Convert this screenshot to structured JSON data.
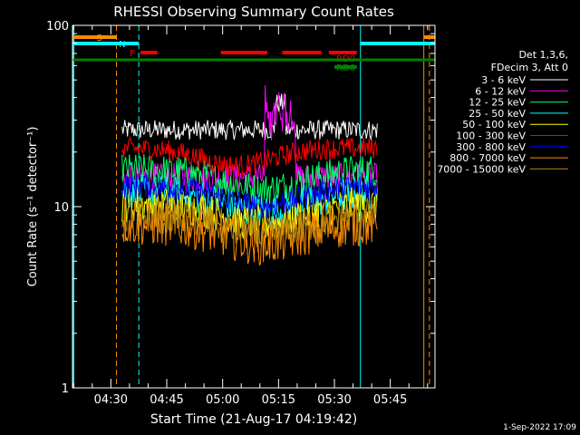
{
  "chart_data": {
    "type": "line",
    "title": "RHESSI Observing Summary Count Rates",
    "xlabel": "Start Time (21-Aug-17 04:19:42)",
    "ylabel": "Count Rate (s⁻¹ detector⁻¹)",
    "yscale": "log",
    "ylim": [
      1,
      100
    ],
    "xlim": [
      "04:19:42",
      "05:57:00"
    ],
    "x_ticks": [
      "04:30",
      "04:45",
      "05:00",
      "05:15",
      "05:30",
      "05:45"
    ],
    "y_ticks": [
      "1",
      "10",
      "100"
    ],
    "grid": false,
    "legend_position": "right",
    "legend_header": [
      "Det 1,3,6,",
      "FDecim 3, Att 0"
    ],
    "series": [
      {
        "name": "3 - 6 keV",
        "color": "#ffffff",
        "level": 26.5,
        "noise": 0.055
      },
      {
        "name": "6 - 12 keV",
        "color": "#ff00ff",
        "level": 14.5,
        "noise": 0.08
      },
      {
        "name": "12 - 25 keV",
        "color": "#00ff66",
        "level": 16.0,
        "noise": 0.09
      },
      {
        "name": "25 - 50 keV",
        "color": "#00ffff",
        "level": 12.0,
        "noise": 0.1
      },
      {
        "name": "50 - 100 keV",
        "color": "#ffff00",
        "level": 10.3,
        "noise": 0.1
      },
      {
        "name": "100 - 300 keV",
        "color": "#ff0000",
        "level": 21.0,
        "noise": 0.06
      },
      {
        "name": "300 - 800 keV",
        "color": "#0000ff",
        "level": 13.0,
        "noise": 0.07
      },
      {
        "name": "800 - 7000 keV",
        "color": "#ff8c00",
        "level": 8.0,
        "noise": 0.12
      },
      {
        "name": "7000 - 15000 keV",
        "color": "#b8860b",
        "level": 9.0,
        "noise": 0.1
      }
    ],
    "data_start": "04:33:00",
    "data_end": "05:41:30",
    "annotations": [
      {
        "label": "S",
        "color": "#ff8c00",
        "start": "04:19:42",
        "end": "04:31:30"
      },
      {
        "label": "N",
        "color": "#00ffff",
        "start": "04:19:42",
        "end": "04:37:30"
      },
      {
        "label": "F",
        "color": "#ff0000",
        "segments": [
          [
            "04:38:00",
            "04:42:30"
          ],
          [
            "04:59:30",
            "05:12:00"
          ],
          [
            "05:16:00",
            "05:26:30"
          ],
          [
            "05:28:30",
            "05:30:30"
          ]
        ]
      },
      {
        "label": "RD0",
        "color": "#ff0000",
        "start": "05:30:00",
        "end": "05:36:00"
      },
      {
        "label": "RD6",
        "color": "#008000",
        "start": "05:30:00",
        "end": "05:36:00"
      },
      {
        "label": "",
        "color": "#00ffff",
        "start": "05:37:00",
        "end": "05:57:00"
      },
      {
        "label": "",
        "color": "#ff8c00",
        "start": "05:54:00",
        "end": "05:57:00"
      }
    ],
    "vlines": [
      {
        "time": "04:31:30",
        "color": "#ff8c00",
        "style": "dashed"
      },
      {
        "time": "04:37:30",
        "color": "#00ffff",
        "style": "dashed"
      },
      {
        "time": "05:37:00",
        "color": "#00ffff",
        "style": "solid"
      },
      {
        "time": "05:54:00",
        "color": "#ff8c00",
        "style": "solid"
      },
      {
        "time": "05:55:30",
        "color": "#ff8c00",
        "style": "dashed"
      }
    ],
    "saa_line_color": "#008000"
  },
  "footer_timestamp": "1-Sep-2022 17:09"
}
